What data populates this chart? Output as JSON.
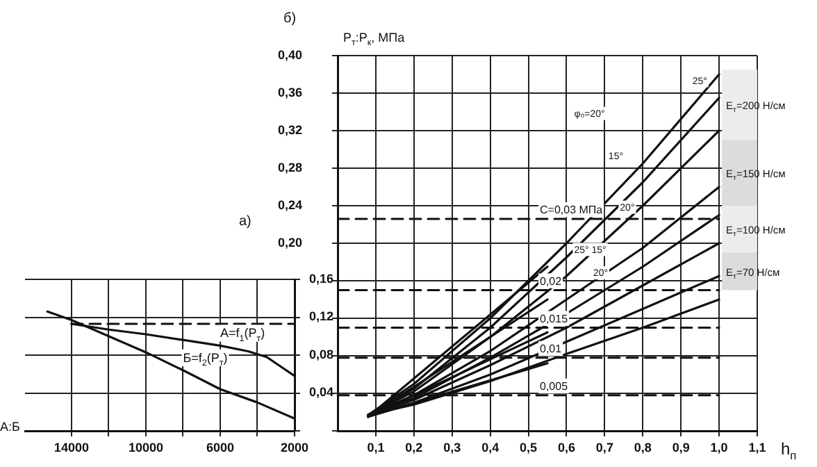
{
  "chart_data": [
    {
      "type": "line",
      "title": "а)",
      "ylabel": "A:Б",
      "xlim": [
        16500,
        2000
      ],
      "xticks": [
        14000,
        {
          "value": 12000,
          "label": null
        },
        10000,
        {
          "value": 8000,
          "label": null
        },
        6000,
        {
          "value": 4000,
          "label": null
        },
        2000
      ],
      "ylim": [
        0,
        0.16
      ],
      "yticks": [
        {
          "value": 0,
          "label": null
        },
        {
          "value": 0.04,
          "label": "0,04"
        },
        {
          "value": 0.08,
          "label": "0,08"
        },
        {
          "value": 0.12,
          "label": "0,12"
        },
        {
          "value": 0.16,
          "label": "0,16"
        }
      ],
      "grid": true,
      "series": [
        {
          "name": "A=f$_{1}$(P$_{т}$)",
          "color": "#111111",
          "x": [
            14000,
            12000,
            10000,
            8000,
            6000,
            4500,
            3500,
            2000
          ],
          "values": [
            0.113,
            0.107,
            0.102,
            0.096,
            0.09,
            0.084,
            0.078,
            0.058
          ]
        },
        {
          "name": "Б=f$_{2}$(P$_{т}$)",
          "color": "#111111",
          "x": [
            15300,
            14000,
            12000,
            10000,
            8000,
            6000,
            4000,
            2000
          ],
          "values": [
            0.126,
            0.117,
            0.1,
            0.083,
            0.064,
            0.044,
            0.03,
            0.013
          ]
        },
        {
          "color": "#111111",
          "line_style": "dashed",
          "x": [
            14000,
            2000
          ],
          "values": [
            0.113,
            0.113
          ]
        }
      ]
    },
    {
      "type": "line",
      "title": "б)",
      "ylabel": "P$_{т}$:P$_{к}$, МПа",
      "xlabel": "h$_{п}$",
      "xlim": [
        0,
        1.1
      ],
      "xticks": [
        {
          "value": 0.1,
          "label": "0,1"
        },
        {
          "value": 0.2,
          "label": "0,2"
        },
        {
          "value": 0.3,
          "label": "0,3"
        },
        {
          "value": 0.4,
          "label": "0,4"
        },
        {
          "value": 0.5,
          "label": "0,5"
        },
        {
          "value": 0.6,
          "label": "0,6"
        },
        {
          "value": 0.7,
          "label": "0,7"
        },
        {
          "value": 0.8,
          "label": "0,8"
        },
        {
          "value": 0.9,
          "label": "0,9"
        },
        {
          "value": 1.0,
          "label": "1,0"
        },
        {
          "value": 1.1,
          "label": "1,1"
        }
      ],
      "ylim": [
        0,
        0.4
      ],
      "yticks": [
        {
          "value": 0,
          "label": null
        },
        {
          "value": 0.04,
          "label": null
        },
        {
          "value": 0.08,
          "label": null
        },
        {
          "value": 0.12,
          "label": null
        },
        {
          "value": 0.16,
          "label": null
        },
        {
          "value": 0.2,
          "label": "0,20"
        },
        {
          "value": 0.24,
          "label": "0,24"
        },
        {
          "value": 0.28,
          "label": "0,28"
        },
        {
          "value": 0.32,
          "label": "0,32"
        },
        {
          "value": 0.36,
          "label": "0,36"
        },
        {
          "value": 0.4,
          "label": "0,40"
        }
      ],
      "grid": true,
      "bands": [
        {
          "axis": "y",
          "from": 0.31,
          "to": 0.385,
          "label": "E$_{т}$=200 Н/см",
          "color": "#ececec"
        },
        {
          "axis": "y",
          "from": 0.24,
          "to": 0.31,
          "label": "E$_{т}$=150 Н/см",
          "color": "#dcdcdc"
        },
        {
          "axis": "y",
          "from": 0.19,
          "to": 0.24,
          "label": "E$_{т}$=100 Н/см",
          "color": "#ececec"
        },
        {
          "axis": "y",
          "from": 0.15,
          "to": 0.19,
          "label": "E$_{т}$=70 Н/см",
          "color": "#dcdcdc"
        }
      ],
      "annotations": [
        "φ₀=20°",
        "25°",
        "15°",
        "20°",
        "25° 15°",
        "20°"
      ],
      "series": [
        {
          "color": "#111111",
          "x": [
            0.08,
            0.2,
            0.4,
            0.6,
            0.8,
            1.0
          ],
          "values": [
            0.017,
            0.05,
            0.12,
            0.2,
            0.285,
            0.38
          ]
        },
        {
          "color": "#111111",
          "x": [
            0.08,
            0.2,
            0.4,
            0.6,
            0.8,
            1.0
          ],
          "values": [
            0.017,
            0.045,
            0.11,
            0.185,
            0.265,
            0.355
          ]
        },
        {
          "color": "#111111",
          "x": [
            0.08,
            0.2,
            0.4,
            0.6,
            0.8,
            1.0
          ],
          "values": [
            0.017,
            0.042,
            0.1,
            0.165,
            0.24,
            0.32
          ]
        },
        {
          "color": "#111111",
          "x": [
            0.08,
            0.2,
            0.4,
            0.6,
            0.8,
            1.0
          ],
          "values": [
            0.017,
            0.038,
            0.085,
            0.14,
            0.195,
            0.26
          ]
        },
        {
          "color": "#111111",
          "x": [
            0.08,
            0.2,
            0.4,
            0.6,
            0.8,
            1.0
          ],
          "values": [
            0.017,
            0.035,
            0.078,
            0.125,
            0.175,
            0.23
          ]
        },
        {
          "color": "#111111",
          "x": [
            0.08,
            0.2,
            0.4,
            0.6,
            0.8,
            1.0
          ],
          "values": [
            0.017,
            0.033,
            0.07,
            0.11,
            0.155,
            0.2
          ]
        },
        {
          "color": "#111111",
          "x": [
            0.08,
            0.2,
            0.4,
            0.6,
            0.8,
            1.0
          ],
          "values": [
            0.017,
            0.03,
            0.06,
            0.095,
            0.13,
            0.165
          ]
        },
        {
          "color": "#111111",
          "x": [
            0.08,
            0.2,
            0.4,
            0.6,
            0.8,
            1.0
          ],
          "values": [
            0.017,
            0.028,
            0.053,
            0.082,
            0.11,
            0.14
          ]
        },
        {
          "color": "#111111",
          "x": [
            0.08,
            0.55
          ],
          "values": [
            0.015,
            0.175
          ]
        },
        {
          "color": "#111111",
          "x": [
            0.08,
            0.55
          ],
          "values": [
            0.015,
            0.14
          ]
        },
        {
          "color": "#111111",
          "x": [
            0.08,
            0.55
          ],
          "values": [
            0.015,
            0.105
          ]
        },
        {
          "color": "#111111",
          "x": [
            0.08,
            0.55
          ],
          "values": [
            0.015,
            0.072
          ]
        },
        {
          "name": "C=0,03 МПа",
          "color": "#111111",
          "line_style": "dashed",
          "x": [
            0,
            1.0
          ],
          "values": [
            0.226,
            0.226
          ]
        },
        {
          "name": "0,02",
          "color": "#111111",
          "line_style": "dashed",
          "x": [
            0,
            1.0
          ],
          "values": [
            0.15,
            0.15
          ]
        },
        {
          "name": "0,015",
          "color": "#111111",
          "line_style": "dashed",
          "x": [
            0,
            1.0
          ],
          "values": [
            0.11,
            0.11
          ]
        },
        {
          "name": "0,01",
          "color": "#111111",
          "line_style": "dashed",
          "x": [
            0,
            1.0
          ],
          "values": [
            0.078,
            0.078
          ]
        },
        {
          "name": "0,005",
          "color": "#111111",
          "line_style": "dashed",
          "x": [
            0,
            1.0
          ],
          "values": [
            0.038,
            0.038
          ]
        }
      ]
    }
  ]
}
